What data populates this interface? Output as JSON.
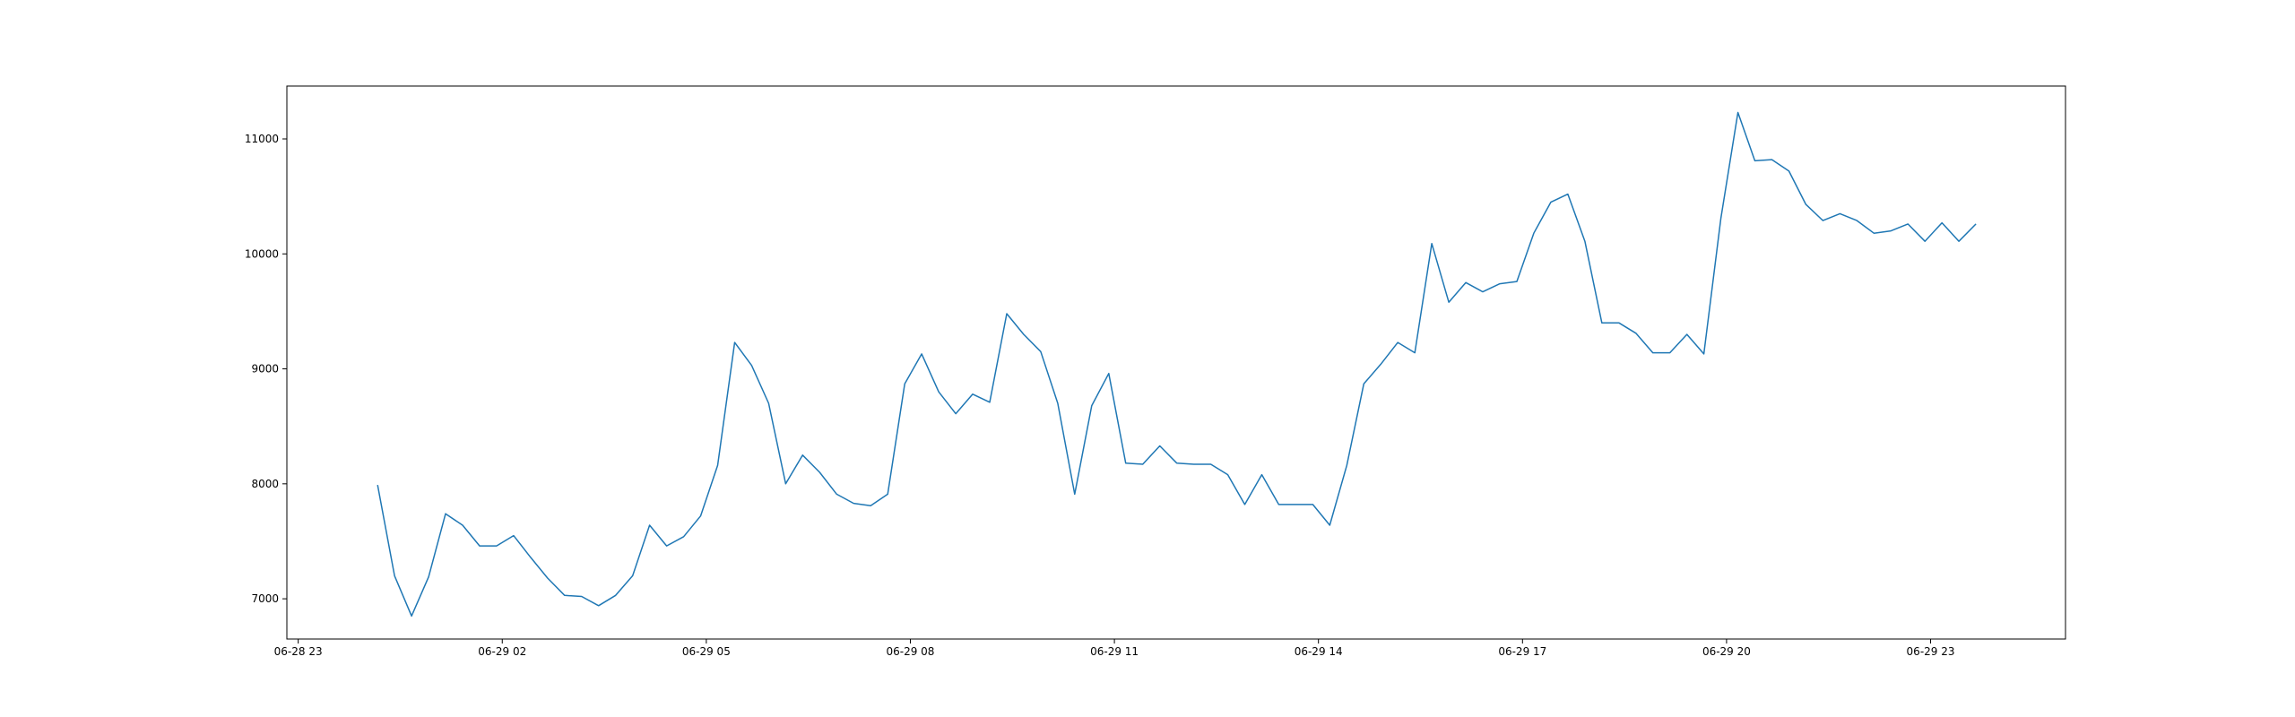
{
  "chart_data": {
    "type": "line",
    "title": "",
    "xlabel": "",
    "ylabel": "",
    "x_tick_labels": [
      "06-28 23",
      "06-29 02",
      "06-29 05",
      "06-29 08",
      "06-29 11",
      "06-29 14",
      "06-29 17",
      "06-29 20",
      "06-29 23"
    ],
    "x_tick_values": [
      "2024-06-28 23:00",
      "2024-06-29 02:00",
      "2024-06-29 05:00",
      "2024-06-29 08:00",
      "2024-06-29 11:00",
      "2024-06-29 14:00",
      "2024-06-29 17:00",
      "2024-06-29 20:00",
      "2024-06-29 23:00"
    ],
    "y_ticks": [
      7000,
      8000,
      9000,
      10000,
      11000
    ],
    "xlim": [
      "2024-06-28 22:50",
      "2024-06-30 00:59"
    ],
    "ylim": [
      6650,
      11460
    ],
    "grid": false,
    "colors": {
      "series": "#1f77b4"
    },
    "series": [
      {
        "x": [
          "2024-06-29 00:10",
          "2024-06-29 00:25",
          "2024-06-29 00:40",
          "2024-06-29 00:55",
          "2024-06-29 01:10",
          "2024-06-29 01:25",
          "2024-06-29 01:40",
          "2024-06-29 01:55",
          "2024-06-29 02:10",
          "2024-06-29 02:25",
          "2024-06-29 02:40",
          "2024-06-29 02:55",
          "2024-06-29 03:10",
          "2024-06-29 03:25",
          "2024-06-29 03:40",
          "2024-06-29 03:55",
          "2024-06-29 04:10",
          "2024-06-29 04:25",
          "2024-06-29 04:40",
          "2024-06-29 04:55",
          "2024-06-29 05:10",
          "2024-06-29 05:25",
          "2024-06-29 05:40",
          "2024-06-29 05:55",
          "2024-06-29 06:10",
          "2024-06-29 06:25",
          "2024-06-29 06:40",
          "2024-06-29 06:55",
          "2024-06-29 07:10",
          "2024-06-29 07:25",
          "2024-06-29 07:40",
          "2024-06-29 07:55",
          "2024-06-29 08:10",
          "2024-06-29 08:25",
          "2024-06-29 08:40",
          "2024-06-29 08:55",
          "2024-06-29 09:10",
          "2024-06-29 09:25",
          "2024-06-29 09:40",
          "2024-06-29 09:55",
          "2024-06-29 10:10",
          "2024-06-29 10:25",
          "2024-06-29 10:40",
          "2024-06-29 10:55",
          "2024-06-29 11:10",
          "2024-06-29 11:25",
          "2024-06-29 11:40",
          "2024-06-29 11:55",
          "2024-06-29 12:10",
          "2024-06-29 12:25",
          "2024-06-29 12:40",
          "2024-06-29 12:55",
          "2024-06-29 13:10",
          "2024-06-29 13:25",
          "2024-06-29 13:40",
          "2024-06-29 13:55",
          "2024-06-29 14:10",
          "2024-06-29 14:25",
          "2024-06-29 14:40",
          "2024-06-29 14:55",
          "2024-06-29 15:10",
          "2024-06-29 15:25",
          "2024-06-29 15:40",
          "2024-06-29 15:55",
          "2024-06-29 16:10",
          "2024-06-29 16:25",
          "2024-06-29 16:40",
          "2024-06-29 16:55",
          "2024-06-29 17:10",
          "2024-06-29 17:25",
          "2024-06-29 17:40",
          "2024-06-29 17:55",
          "2024-06-29 18:10",
          "2024-06-29 18:25",
          "2024-06-29 18:40",
          "2024-06-29 18:55",
          "2024-06-29 19:10",
          "2024-06-29 19:25",
          "2024-06-29 19:40",
          "2024-06-29 19:55",
          "2024-06-29 20:10",
          "2024-06-29 20:25",
          "2024-06-29 20:40",
          "2024-06-29 20:55",
          "2024-06-29 21:10",
          "2024-06-29 21:25",
          "2024-06-29 21:40",
          "2024-06-29 21:55",
          "2024-06-29 22:10",
          "2024-06-29 22:25",
          "2024-06-29 22:40",
          "2024-06-29 22:55",
          "2024-06-29 23:10",
          "2024-06-29 23:25",
          "2024-06-29 23:40"
        ],
        "y": [
          7990,
          7200,
          6850,
          7190,
          7740,
          7640,
          7460,
          7460,
          7550,
          7360,
          7180,
          7030,
          7020,
          6940,
          7030,
          7200,
          7640,
          7460,
          7540,
          7720,
          8160,
          9230,
          9030,
          8700,
          8000,
          8250,
          8100,
          7910,
          7830,
          7810,
          7910,
          8870,
          9130,
          8800,
          8610,
          8780,
          8710,
          9480,
          9300,
          9150,
          8700,
          7910,
          8680,
          8960,
          8180,
          8170,
          8330,
          8180,
          8170,
          8170,
          8080,
          7820,
          8080,
          7820,
          7820,
          7820,
          7640,
          8160,
          8870,
          9040,
          9230,
          9140,
          10090,
          9580,
          9750,
          9670,
          9740,
          9760,
          10180,
          10450,
          10520,
          10110,
          9400,
          9400,
          9310,
          9140,
          9140,
          9300,
          9130,
          10310,
          11230,
          10810,
          10820,
          10720,
          10430,
          10290,
          10350,
          10290,
          10180,
          10200,
          10260,
          10110,
          10270,
          10110,
          10260
        ]
      }
    ]
  }
}
